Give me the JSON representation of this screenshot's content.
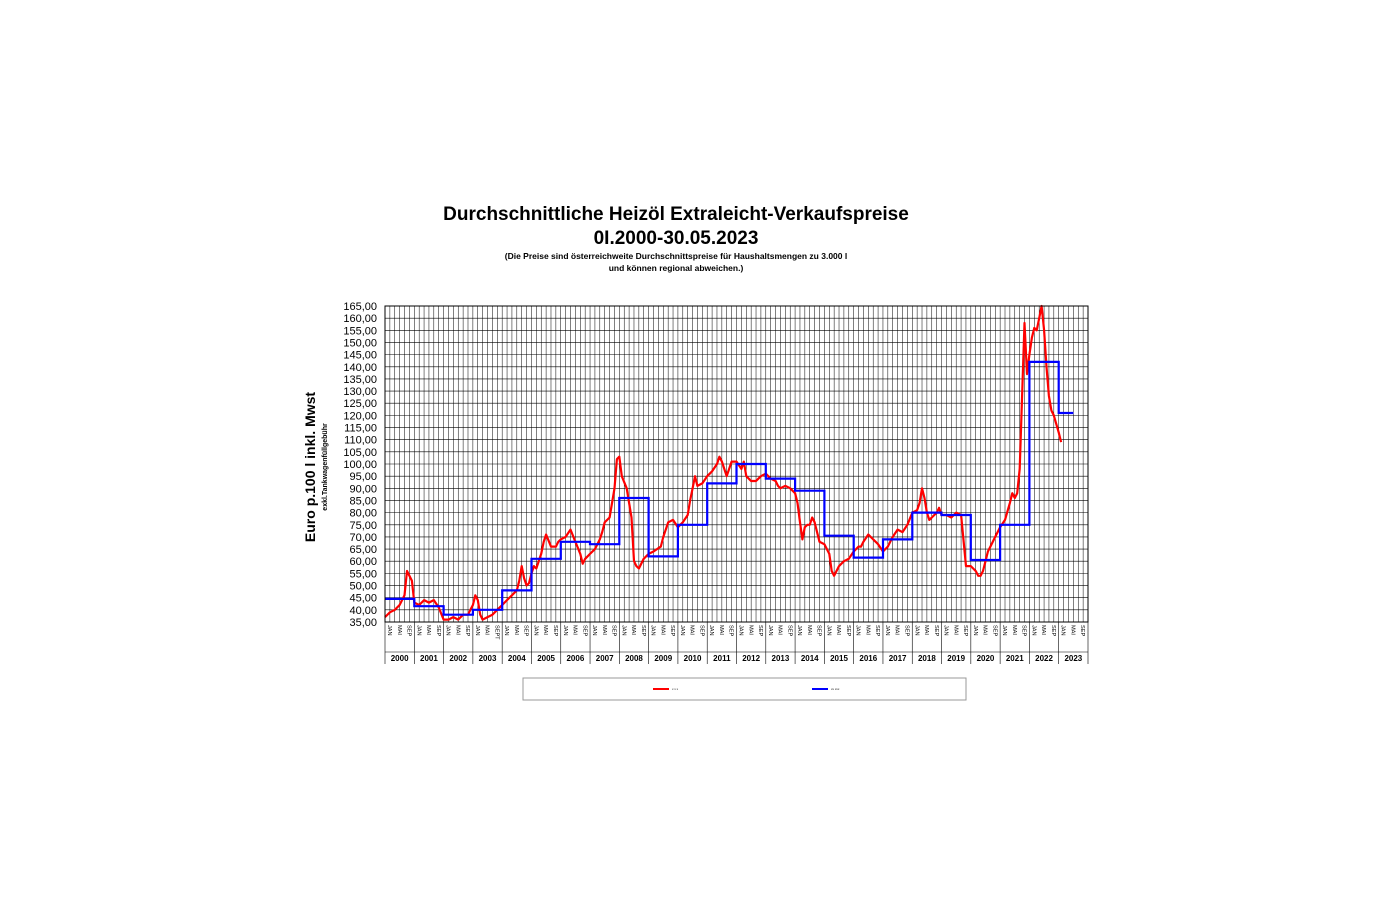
{
  "chart_data": {
    "type": "line",
    "title": "Durchschnittliche Heizöl Extraleicht-Verkaufspreise",
    "subtitle": "0I.2000-30.05.2023",
    "note_line1": "(Die Preise sind österreichweite Durchschnittspreise für Haushaltsmengen zu 3.000 l",
    "note_line2": "und können regional abweichen.)",
    "ylabel": "Euro p.100 l inkl. Mwst",
    "ylabel_note": "exkl.Tankwagenfüllgebühr",
    "ylim": [
      35,
      165
    ],
    "yticks": [
      "35,00",
      "40,00",
      "45,00",
      "50,00",
      "55,00",
      "60,00",
      "65,00",
      "70,00",
      "75,00",
      "80,00",
      "85,00",
      "90,00",
      "95,00",
      "100,00",
      "105,00",
      "110,00",
      "115,00",
      "120,00",
      "125,00",
      "130,00",
      "135,00",
      "140,00",
      "145,00",
      "150,00",
      "155,00",
      "160,00",
      "165,00"
    ],
    "years": [
      "2000",
      "2001",
      "2002",
      "2003",
      "2004",
      "2005",
      "2006",
      "2007",
      "2008",
      "2009",
      "2010",
      "2011",
      "2012",
      "2013",
      "2014",
      "2015",
      "2016",
      "2017",
      "2018",
      "2019",
      "2020",
      "2021",
      "2022",
      "2023"
    ],
    "month_labels": [
      "JAN",
      "MAI",
      "SEP"
    ],
    "month_labels_2003": [
      "JAN",
      "MAI",
      "SEPT"
    ],
    "grid": true,
    "legend_position": "bottom",
    "series": [
      {
        "name": "",
        "color": "#ff0000",
        "kind": "monthly",
        "points": [
          [
            0,
            37
          ],
          [
            2,
            39
          ],
          [
            4,
            40
          ],
          [
            6,
            42
          ],
          [
            8,
            46
          ],
          [
            9,
            56
          ],
          [
            10,
            54
          ],
          [
            11,
            52
          ],
          [
            12,
            43
          ],
          [
            14,
            42
          ],
          [
            16,
            44
          ],
          [
            18,
            43
          ],
          [
            20,
            44
          ],
          [
            22,
            41
          ],
          [
            24,
            36
          ],
          [
            26,
            36
          ],
          [
            28,
            37
          ],
          [
            30,
            36
          ],
          [
            32,
            38
          ],
          [
            34,
            38
          ],
          [
            35,
            40
          ],
          [
            36,
            42
          ],
          [
            37,
            46
          ],
          [
            38,
            44
          ],
          [
            39,
            38
          ],
          [
            40,
            36
          ],
          [
            42,
            37
          ],
          [
            44,
            38
          ],
          [
            46,
            40
          ],
          [
            48,
            42
          ],
          [
            50,
            44
          ],
          [
            52,
            46
          ],
          [
            54,
            48
          ],
          [
            55,
            52
          ],
          [
            56,
            58
          ],
          [
            57,
            53
          ],
          [
            58,
            50
          ],
          [
            59,
            51
          ],
          [
            60,
            55
          ],
          [
            61,
            58
          ],
          [
            62,
            57
          ],
          [
            64,
            63
          ],
          [
            65,
            68
          ],
          [
            66,
            71
          ],
          [
            68,
            66
          ],
          [
            70,
            66
          ],
          [
            71,
            68
          ],
          [
            72,
            69
          ],
          [
            74,
            70
          ],
          [
            76,
            73
          ],
          [
            78,
            68
          ],
          [
            80,
            63
          ],
          [
            81,
            59
          ],
          [
            82,
            61
          ],
          [
            84,
            63
          ],
          [
            86,
            65
          ],
          [
            88,
            69
          ],
          [
            89,
            72
          ],
          [
            90,
            76
          ],
          [
            92,
            78
          ],
          [
            94,
            90
          ],
          [
            95,
            102
          ],
          [
            96,
            103
          ],
          [
            97,
            95
          ],
          [
            99,
            90
          ],
          [
            101,
            78
          ],
          [
            102,
            60
          ],
          [
            103,
            58
          ],
          [
            104,
            57
          ],
          [
            106,
            61
          ],
          [
            108,
            63
          ],
          [
            110,
            64
          ],
          [
            113,
            66
          ],
          [
            114,
            70
          ],
          [
            116,
            76
          ],
          [
            118,
            77
          ],
          [
            120,
            74
          ],
          [
            122,
            76
          ],
          [
            124,
            79
          ],
          [
            125,
            85
          ],
          [
            126,
            90
          ],
          [
            127,
            95
          ],
          [
            128,
            91
          ],
          [
            130,
            92
          ],
          [
            132,
            95
          ],
          [
            134,
            97
          ],
          [
            136,
            100
          ],
          [
            137,
            103
          ],
          [
            138,
            101
          ],
          [
            140,
            95
          ],
          [
            142,
            101
          ],
          [
            144,
            101
          ],
          [
            146,
            98
          ],
          [
            147,
            101
          ],
          [
            148,
            95
          ],
          [
            150,
            93
          ],
          [
            152,
            93
          ],
          [
            154,
            95
          ],
          [
            156,
            96
          ],
          [
            158,
            94
          ],
          [
            160,
            93
          ],
          [
            161,
            91
          ],
          [
            162,
            90
          ],
          [
            164,
            91
          ],
          [
            166,
            90
          ],
          [
            168,
            88
          ],
          [
            169,
            84
          ],
          [
            170,
            76
          ],
          [
            171,
            69
          ],
          [
            172,
            74
          ],
          [
            173,
            75
          ],
          [
            174,
            75
          ],
          [
            175,
            78
          ],
          [
            176,
            76
          ],
          [
            178,
            68
          ],
          [
            180,
            67
          ],
          [
            182,
            63
          ],
          [
            183,
            56
          ],
          [
            184,
            54
          ],
          [
            186,
            58
          ],
          [
            188,
            60
          ],
          [
            190,
            61
          ],
          [
            192,
            64
          ],
          [
            194,
            66
          ],
          [
            195,
            66
          ],
          [
            196,
            68
          ],
          [
            198,
            71
          ],
          [
            200,
            69
          ],
          [
            202,
            67
          ],
          [
            204,
            64
          ],
          [
            206,
            66
          ],
          [
            208,
            70
          ],
          [
            210,
            73
          ],
          [
            212,
            72
          ],
          [
            214,
            75
          ],
          [
            216,
            80
          ],
          [
            218,
            81
          ],
          [
            219,
            84
          ],
          [
            220,
            90
          ],
          [
            221,
            86
          ],
          [
            222,
            80
          ],
          [
            223,
            77
          ],
          [
            224,
            78
          ],
          [
            226,
            80
          ],
          [
            227,
            82
          ],
          [
            228,
            79
          ],
          [
            230,
            79
          ],
          [
            232,
            78
          ],
          [
            234,
            80
          ],
          [
            236,
            79
          ],
          [
            238,
            58
          ],
          [
            240,
            58
          ],
          [
            242,
            56
          ],
          [
            243,
            54
          ],
          [
            244,
            54
          ],
          [
            245,
            56
          ],
          [
            246,
            60
          ],
          [
            247,
            64
          ],
          [
            248,
            66
          ],
          [
            250,
            70
          ],
          [
            252,
            74
          ],
          [
            254,
            77
          ],
          [
            256,
            84
          ],
          [
            257,
            88
          ],
          [
            258,
            86
          ],
          [
            259,
            88
          ],
          [
            260,
            98
          ],
          [
            262,
            158
          ],
          [
            263,
            137
          ],
          [
            264,
            145
          ],
          [
            265,
            152
          ],
          [
            266,
            156
          ],
          [
            267,
            155
          ],
          [
            268,
            160
          ],
          [
            269,
            165
          ],
          [
            270,
            155
          ],
          [
            271,
            140
          ],
          [
            272,
            128
          ],
          [
            273,
            122
          ],
          [
            274,
            120
          ],
          [
            276,
            113
          ],
          [
            277,
            109
          ]
        ]
      },
      {
        "name": "",
        "color": "#0000ff",
        "kind": "annual_step",
        "values": [
          44.5,
          41.5,
          38,
          40,
          48,
          61,
          68,
          67,
          86,
          62,
          75,
          92,
          100,
          94,
          89,
          70.5,
          61.5,
          69,
          80,
          79,
          60.5,
          75,
          142,
          121
        ],
        "last_year_months": 6
      }
    ]
  },
  "legend": [
    {
      "name": "legend-red-line",
      "color": "#ff0000",
      "text": "x x x"
    },
    {
      "name": "legend-blue-line",
      "color": "#0000ff",
      "text": "xx xxx"
    }
  ]
}
